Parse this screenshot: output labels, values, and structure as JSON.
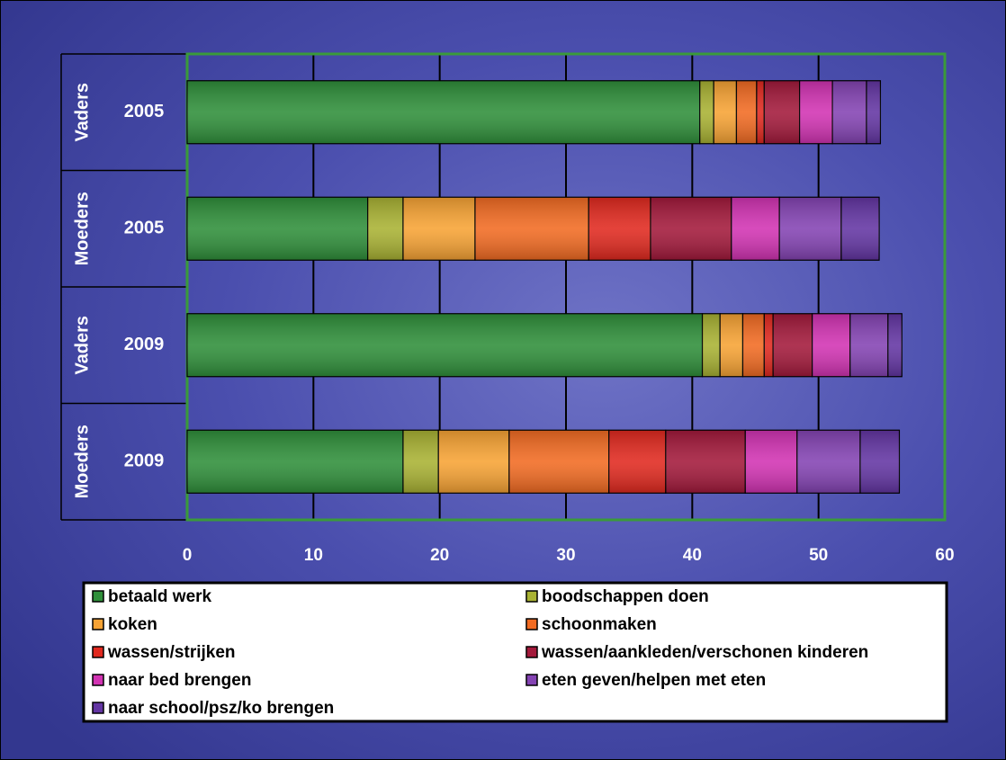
{
  "chart_data": {
    "type": "stacked-barh",
    "categories": [
      "2005",
      "2005",
      "2009",
      "2009"
    ],
    "groups": [
      "Vaders",
      "Moeders",
      "Vaders",
      "Moeders"
    ],
    "series": [
      {
        "name": "betaald werk",
        "color": "#2f8f3a",
        "values": [
          40.6,
          14.3,
          40.8,
          17.1
        ]
      },
      {
        "name": "boodschappen doen",
        "color": "#a9b233",
        "values": [
          1.1,
          2.8,
          1.4,
          2.8
        ]
      },
      {
        "name": "koken",
        "color": "#f7a334",
        "values": [
          1.8,
          5.7,
          1.8,
          5.6
        ]
      },
      {
        "name": "schoonmaken",
        "color": "#f26b22",
        "values": [
          1.6,
          9.0,
          1.7,
          7.9
        ]
      },
      {
        "name": "wassen/strijken",
        "color": "#e1291f",
        "values": [
          0.6,
          4.9,
          0.7,
          4.5
        ]
      },
      {
        "name": "wassen/aankleden/verschonen kinderen",
        "color": "#a3193b",
        "values": [
          2.8,
          6.4,
          3.1,
          6.3
        ]
      },
      {
        "name": "naar bed brengen",
        "color": "#d233b3",
        "values": [
          2.6,
          3.8,
          3.0,
          4.1
        ]
      },
      {
        "name": "eten geven/helpen met eten",
        "color": "#8443b3",
        "values": [
          2.7,
          4.9,
          3.0,
          5.0
        ]
      },
      {
        "name": "naar school/psz/ko brengen",
        "color": "#6335a3",
        "values": [
          1.1,
          3.0,
          1.1,
          3.1
        ]
      }
    ],
    "xlim": [
      0,
      60
    ],
    "xticks": [
      0,
      10,
      20,
      30,
      40,
      50,
      60
    ],
    "grid": true
  }
}
